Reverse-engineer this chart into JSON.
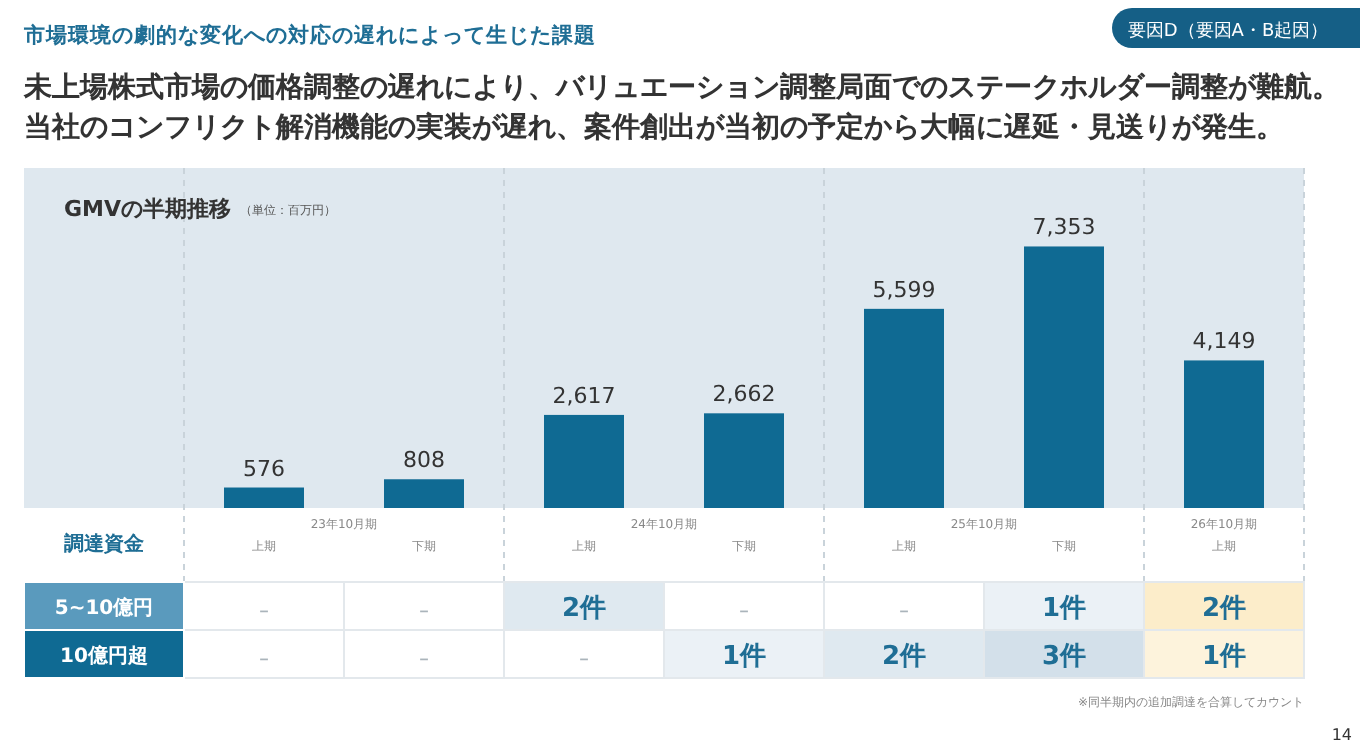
{
  "chart_data": [
    {
      "type": "bar",
      "title": "GMVの半期推移",
      "subtitle": "（単位：百万円）",
      "categories": [
        "上期",
        "下期",
        "上期",
        "下期",
        "上期",
        "下期",
        "上期"
      ],
      "values": [
        576,
        808,
        2617,
        2662,
        5599,
        7353,
        4149
      ],
      "color": "#0f6a93",
      "value_labels": [
        "576",
        "808",
        "2,617",
        "2,662",
        "5,599",
        "7,353",
        "4,149"
      ],
      "annotations": [
        "23年10月期",
        "24年10月期",
        "25年10月期",
        "26年10月期",
        "市場環境の劇的な変化への対応の遅れによって生じた課題",
        "要因D（要因A・B起因）",
        "未上場株式市場の価格調整の遅れにより、バリュエーション調整局面でのステークホルダー調整が難航。",
        "当社のコンフリクト解消機能の実装が遅れ、案件創出が当初の予定から大幅に遅延・見送りが発生。",
        "※同半期内の追加調達を合算してカウント",
        "14"
      ]
    },
    {
      "type": "heatmap",
      "title": "調達資金",
      "categories": [
        null,
        null,
        null,
        null,
        null,
        null,
        null
      ],
      "y_categories": [
        "5~10億円",
        "10億円超"
      ],
      "tick_labels": "y",
      "cells": [
        [
          null,
          null,
          2,
          null,
          null,
          1,
          2
        ],
        [
          null,
          null,
          null,
          1,
          2,
          3,
          1
        ]
      ],
      "cell_labels": [
        [
          "－",
          "－",
          "2件",
          "－",
          "－",
          "1件",
          "2件"
        ],
        [
          "－",
          "－",
          "－",
          "1件",
          "2件",
          "3件",
          "1件"
        ]
      ]
    }
  ]
}
